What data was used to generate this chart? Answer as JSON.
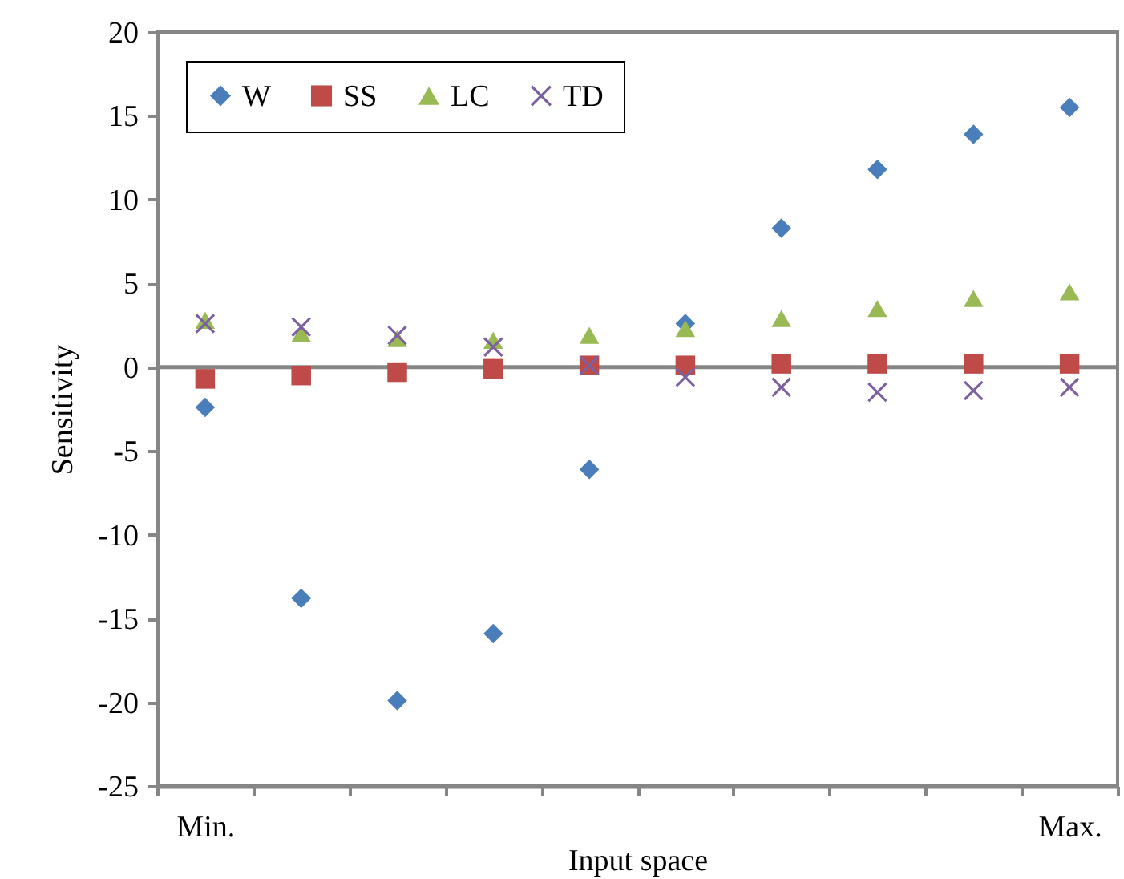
{
  "chart_data": {
    "type": "scatter",
    "xlabel": "Input space",
    "ylabel": "Sensitivity",
    "categories": [
      "Min.",
      null,
      null,
      null,
      null,
      null,
      null,
      null,
      null,
      "Max."
    ],
    "series": [
      {
        "name": "W",
        "color": "#4a7ebb",
        "marker": "diamond",
        "values": [
          -2.4,
          -13.8,
          -19.9,
          -15.9,
          -6.1,
          2.6,
          8.3,
          11.8,
          13.9,
          15.5
        ]
      },
      {
        "name": "SS",
        "color": "#be4b48",
        "marker": "square",
        "values": [
          -0.7,
          -0.5,
          -0.3,
          -0.1,
          0.1,
          0.1,
          0.2,
          0.2,
          0.2,
          0.2
        ]
      },
      {
        "name": "LC",
        "color": "#98b954",
        "marker": "triangle",
        "values": [
          2.8,
          2.0,
          1.7,
          1.6,
          1.9,
          2.3,
          2.9,
          3.5,
          4.1,
          4.5
        ]
      },
      {
        "name": "TD",
        "color": "#7d60a0",
        "marker": "cross",
        "values": [
          2.6,
          2.4,
          1.9,
          1.2,
          0.1,
          -0.6,
          -1.2,
          -1.5,
          -1.4,
          -1.2
        ]
      }
    ],
    "ylim": [
      -25,
      20
    ],
    "yticks": [
      -25,
      -20,
      -15,
      -10,
      -5,
      0,
      5,
      10,
      15,
      20
    ],
    "ref_lines": [
      {
        "axis": "y",
        "value": 0,
        "color": "#868686"
      }
    ],
    "grid": false,
    "legend": "top left"
  }
}
